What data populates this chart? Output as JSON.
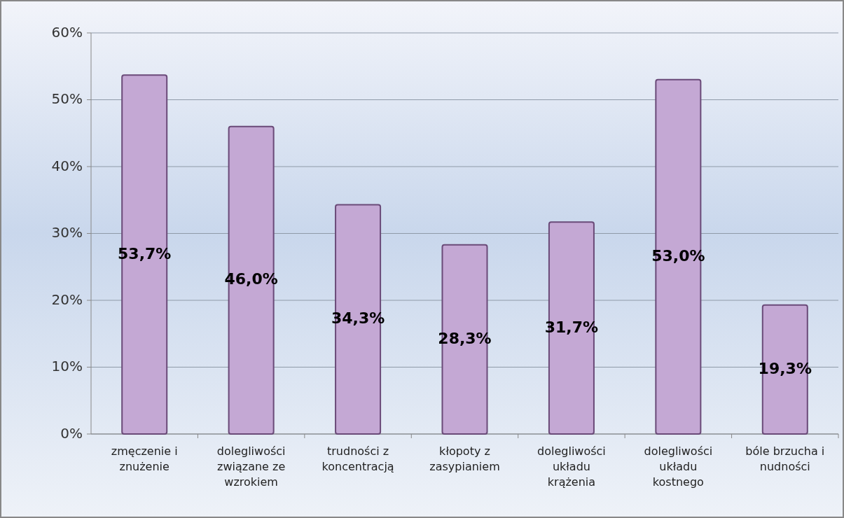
{
  "chart_data": {
    "type": "bar",
    "categories": [
      "zmęczenie i znużenie",
      "dolegliwości związane ze wzrokiem",
      "trudności z koncentracją",
      "kłopoty z zasypianiem",
      "dolegliwości układu krążenia",
      "dolegliwości układu kostnego",
      "bóle brzucha i nudności"
    ],
    "values": [
      53.7,
      46.0,
      34.3,
      28.3,
      31.7,
      53.0,
      19.3
    ],
    "value_labels": [
      "53,7%",
      "46,0%",
      "34,3%",
      "28,3%",
      "31,7%",
      "53,0%",
      "19,3%"
    ],
    "color": "#c4a8d4",
    "ylim": [
      0,
      60
    ],
    "yticks": [
      {
        "value": 0,
        "label": "0%"
      },
      {
        "value": 10,
        "label": "10%"
      },
      {
        "value": 20,
        "label": "20%"
      },
      {
        "value": 30,
        "label": "30%"
      },
      {
        "value": 40,
        "label": "40%"
      },
      {
        "value": 50,
        "label": "50%"
      },
      {
        "value": 60,
        "label": "60%"
      }
    ],
    "grid": "y"
  }
}
